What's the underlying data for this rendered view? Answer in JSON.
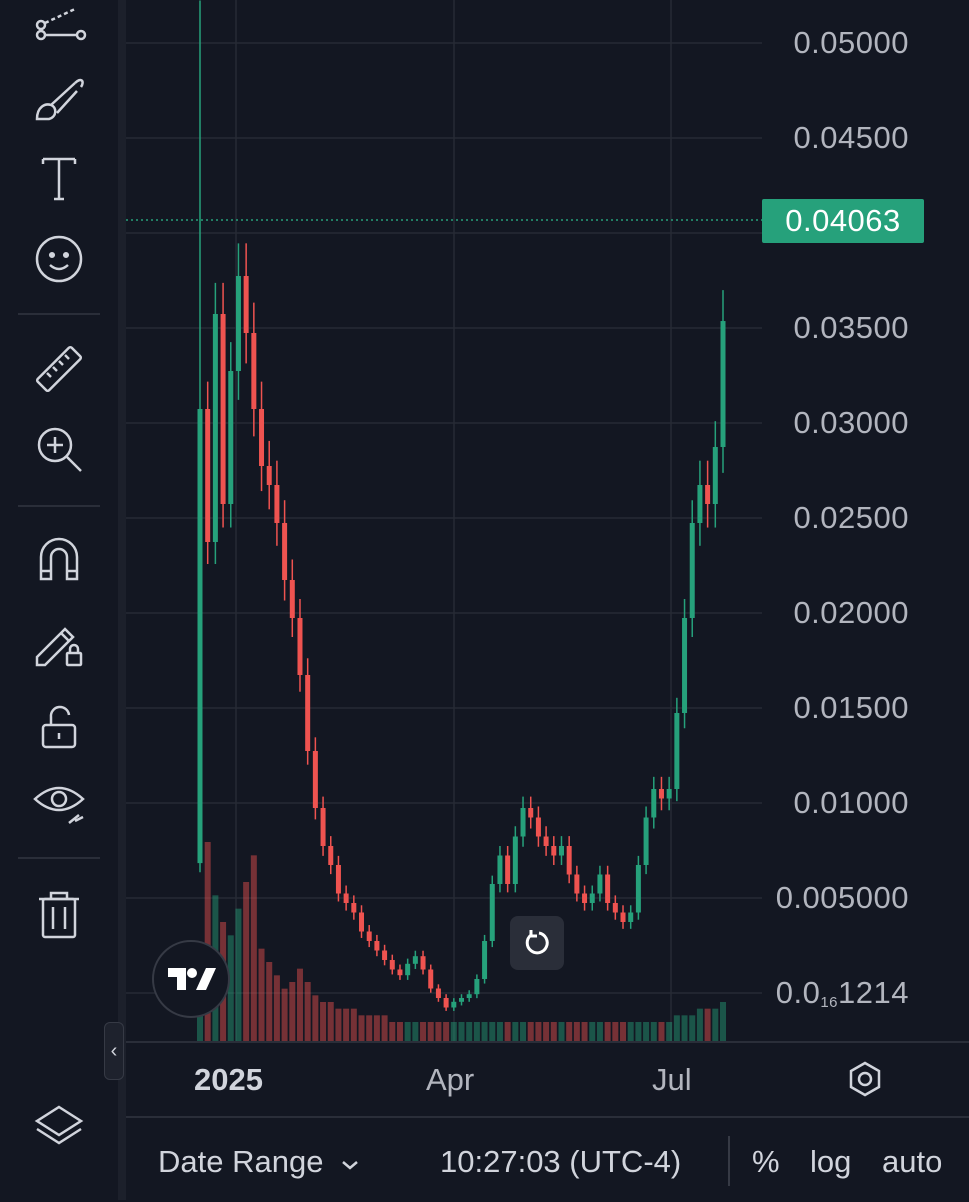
{
  "toolbar": {
    "tools": [
      "trend-line-tool",
      "brush-tool",
      "text-tool",
      "emoji-tool",
      "measure-tool",
      "zoom-in-tool",
      "magnet-tool",
      "lock-drawing-tool",
      "unlock-tool",
      "visibility-tool",
      "delete-tool"
    ],
    "layers_icon": "layers-icon",
    "collapse_glyph": "‹"
  },
  "price_axis": {
    "labels": [
      "0.05000",
      "0.04500",
      "0.03500",
      "0.03000",
      "0.02500",
      "0.02000",
      "0.01500",
      "0.01000",
      "0.005000"
    ],
    "bottom_label_prefix": "0.0",
    "bottom_label_sub": "16",
    "bottom_label_suffix": "1214",
    "last_price": "0.04063",
    "last_price_color": "#26a17b"
  },
  "time_axis": {
    "labels": [
      "2025",
      "Apr",
      "Jul"
    ]
  },
  "bottom_bar": {
    "date_range": "Date Range",
    "time": "10:27:03 (UTC-4)",
    "percent": "%",
    "log": "log",
    "auto": "auto"
  },
  "colors": {
    "up": "#26a17b",
    "down": "#ef5350",
    "background": "#131722",
    "grid": "#262a35"
  },
  "chart_data": {
    "type": "candlestick",
    "x_axis_labels": [
      "2025",
      "Apr",
      "Jul"
    ],
    "y_axis_labels": [
      "0.05000",
      "0.04500",
      "0.03500",
      "0.03000",
      "0.02500",
      "0.02000",
      "0.01500",
      "0.01000",
      "0.005000"
    ],
    "last_price": 0.04063,
    "log_scale": false,
    "grid": true,
    "series": [
      {
        "values": [
          0.036,
          0.029,
          0.041,
          0.031,
          0.038,
          0.043,
          0.04,
          0.036,
          0.033,
          0.032,
          0.03,
          0.027,
          0.025,
          0.022,
          0.018,
          0.015,
          0.013,
          0.012,
          0.0105,
          0.01,
          0.0095,
          0.0085,
          0.008,
          0.0075,
          0.007,
          0.0065,
          0.0062,
          0.0068,
          0.0072,
          0.0065,
          0.0055,
          0.005,
          0.0045,
          0.0048,
          0.005,
          0.0052,
          0.006,
          0.008,
          0.011,
          0.0125,
          0.011,
          0.0135,
          0.015,
          0.0145,
          0.0135,
          0.013,
          0.0125,
          0.013,
          0.0115,
          0.0105,
          0.01,
          0.0105,
          0.0115,
          0.01,
          0.0095,
          0.009,
          0.0095,
          0.012,
          0.0145,
          0.016,
          0.0155,
          0.016,
          0.02,
          0.025,
          0.03,
          0.032,
          0.031,
          0.034,
          0.04063
        ]
      }
    ],
    "volume_values": [
      8,
      30,
      22,
      18,
      16,
      20,
      24,
      28,
      14,
      12,
      10,
      8,
      9,
      11,
      9,
      7,
      6,
      6,
      5,
      5,
      5,
      4,
      4,
      4,
      4,
      3,
      3,
      3,
      3,
      3,
      3,
      3,
      3,
      3,
      3,
      3,
      3,
      3,
      3,
      3,
      3,
      3,
      3,
      3,
      3,
      3,
      3,
      3,
      3,
      3,
      3,
      3,
      3,
      3,
      3,
      3,
      3,
      3,
      3,
      3,
      3,
      3,
      4,
      4,
      4,
      5,
      5,
      5,
      6
    ]
  }
}
